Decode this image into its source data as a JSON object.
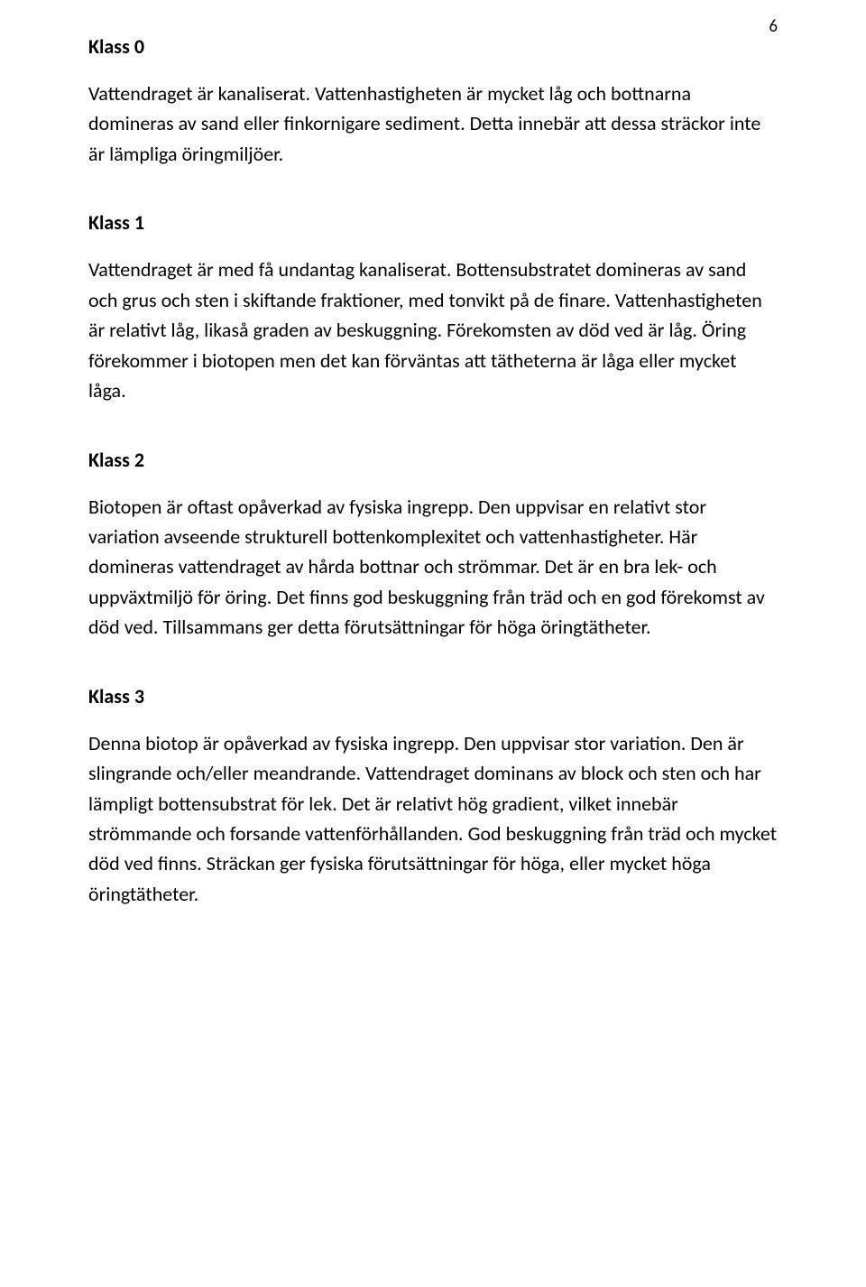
{
  "page_number": "6",
  "sections": [
    {
      "title": "Klass 0",
      "body": "Vattendraget är kanaliserat. Vattenhastigheten är mycket låg och bottnarna domineras av sand eller finkornigare sediment. Detta innebär att dessa sträckor inte är lämpliga öringmiljöer."
    },
    {
      "title": "Klass 1",
      "body": "Vattendraget är med få undantag kanaliserat. Bottensubstratet domineras av sand och grus och sten i skiftande fraktioner, med tonvikt på de finare. Vattenhastigheten är relativt låg, likaså graden av beskuggning. Förekomsten av död ved är låg. Öring förekommer i biotopen men det kan förväntas att tätheterna är låga eller mycket låga."
    },
    {
      "title": "Klass 2",
      "body": "Biotopen är oftast opåverkad av fysiska ingrepp. Den uppvisar en relativt stor variation avseende strukturell bottenkomplexitet och vattenhastigheter. Här domineras vattendraget av hårda bottnar och strömmar. Det är en bra lek- och uppväxtmiljö för öring. Det finns god beskuggning från träd och en god förekomst av död ved. Tillsammans ger detta förutsättningar för höga öringtätheter."
    },
    {
      "title": "Klass 3",
      "body": "Denna biotop är opåverkad av fysiska ingrepp. Den uppvisar stor variation. Den är slingrande och/eller meandrande. Vattendraget dominans av block och sten och har lämpligt bottensubstrat för lek. Det är relativt hög gradient, vilket innebär strömmande och forsande vattenförhållanden. God beskuggning från träd och mycket död ved finns. Sträckan ger fysiska förutsättningar för höga, eller mycket höga öringtätheter."
    }
  ]
}
